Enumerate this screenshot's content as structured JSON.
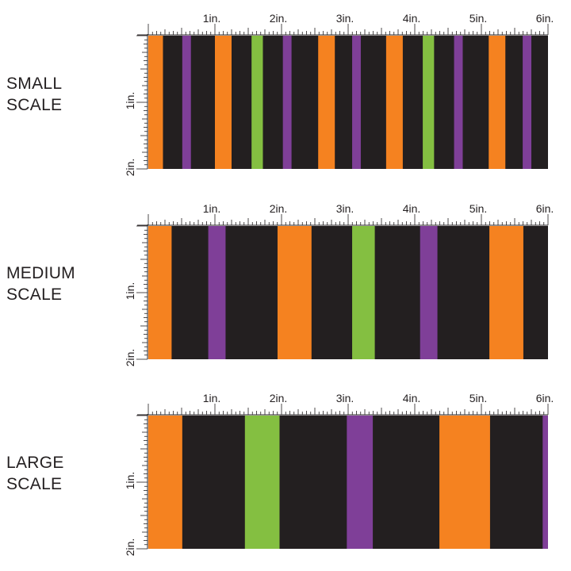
{
  "ruler": {
    "top_labels": [
      "1in.",
      "2in.",
      "3in.",
      "4in.",
      "5in.",
      "6in."
    ],
    "side_labels": [
      "1in.",
      "2in."
    ]
  },
  "colors": {
    "black": "#231f20",
    "orange": "#f58220",
    "purple": "#7f3f98",
    "green": "#84bf41"
  },
  "panels": [
    {
      "id": "small",
      "label_line1": "SMALL",
      "label_line2": "SCALE",
      "stripes": [
        {
          "from": 0.0,
          "to": 0.22,
          "color": "orange"
        },
        {
          "from": 0.51,
          "to": 0.64,
          "color": "purple"
        },
        {
          "from": 1.0,
          "to": 1.25,
          "color": "orange"
        },
        {
          "from": 1.55,
          "to": 1.72,
          "color": "green"
        },
        {
          "from": 2.02,
          "to": 2.15,
          "color": "purple"
        },
        {
          "from": 2.55,
          "to": 2.8,
          "color": "orange"
        },
        {
          "from": 3.06,
          "to": 3.19,
          "color": "purple"
        },
        {
          "from": 3.57,
          "to": 3.82,
          "color": "orange"
        },
        {
          "from": 4.12,
          "to": 4.29,
          "color": "green"
        },
        {
          "from": 4.59,
          "to": 4.72,
          "color": "purple"
        },
        {
          "from": 5.11,
          "to": 5.36,
          "color": "orange"
        },
        {
          "from": 5.62,
          "to": 5.75,
          "color": "purple"
        }
      ],
      "end": 6.0
    },
    {
      "id": "medium",
      "label_line1": "MEDIUM",
      "label_line2": "SCALE",
      "stripes": [
        {
          "from": 0.0,
          "to": 0.35,
          "color": "orange"
        },
        {
          "from": 0.9,
          "to": 1.16,
          "color": "purple"
        },
        {
          "from": 1.94,
          "to": 2.45,
          "color": "orange"
        },
        {
          "from": 3.06,
          "to": 3.4,
          "color": "green"
        },
        {
          "from": 4.08,
          "to": 4.34,
          "color": "purple"
        },
        {
          "from": 5.12,
          "to": 5.63,
          "color": "orange"
        }
      ],
      "end": 6.0
    },
    {
      "id": "large",
      "label_line1": "LARGE",
      "label_line2": "SCALE",
      "stripes": [
        {
          "from": 0.0,
          "to": 0.51,
          "color": "orange"
        },
        {
          "from": 1.45,
          "to": 1.97,
          "color": "green"
        },
        {
          "from": 2.98,
          "to": 3.37,
          "color": "purple"
        },
        {
          "from": 4.37,
          "to": 5.13,
          "color": "orange"
        },
        {
          "from": 5.92,
          "to": 6.0,
          "color": "purple"
        }
      ],
      "end": 6.0
    }
  ]
}
